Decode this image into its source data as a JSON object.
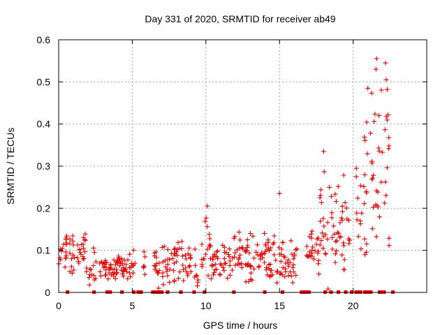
{
  "chart_data": {
    "type": "scatter",
    "title": "Day 331 of 2020, SRMTID for receiver ab49",
    "xlabel": "GPS time / hours",
    "ylabel": "SRMTID / TECUs",
    "xlim": [
      0,
      25
    ],
    "ylim": [
      0,
      0.6
    ],
    "xticks": [
      0,
      5,
      10,
      15,
      20
    ],
    "yticks": [
      0,
      0.1,
      0.2,
      0.3,
      0.4,
      0.5,
      0.6
    ],
    "xtick_labels": [
      "0",
      "5",
      "10",
      "15",
      "20"
    ],
    "ytick_labels": [
      "0",
      "0.1",
      "0.2",
      "0.3",
      "0.4",
      "0.5",
      "0.6"
    ],
    "grid": true,
    "marker": "+",
    "color": "#e00000",
    "series": [
      {
        "name": "SRMTID",
        "segments": [
          {
            "start": 0.0,
            "end": 0.6,
            "mean": 0.1,
            "spread": 0.025
          },
          {
            "start": 0.7,
            "end": 1.9,
            "mean": 0.09,
            "spread": 0.025
          },
          {
            "start": 2.0,
            "end": 4.7,
            "mean": 0.055,
            "spread": 0.018
          },
          {
            "start": 4.8,
            "end": 5.2,
            "mean": 0.065,
            "spread": 0.02
          },
          {
            "start": 5.7,
            "end": 5.9,
            "mean": 0.06,
            "spread": 0.02
          },
          {
            "start": 6.5,
            "end": 9.0,
            "mean": 0.065,
            "spread": 0.025
          },
          {
            "start": 9.2,
            "end": 9.5,
            "mean": 0.06,
            "spread": 0.02
          },
          {
            "start": 9.7,
            "end": 9.9,
            "mean": 0.085,
            "spread": 0.02
          },
          {
            "start": 9.95,
            "end": 10.3,
            "mean": 0.14,
            "spread": 0.04
          },
          {
            "start": 10.3,
            "end": 11.8,
            "mean": 0.075,
            "spread": 0.025
          },
          {
            "start": 11.8,
            "end": 15.2,
            "mean": 0.08,
            "spread": 0.03
          },
          {
            "start": 15.2,
            "end": 16.2,
            "mean": 0.07,
            "spread": 0.025
          },
          {
            "start": 16.8,
            "end": 17.7,
            "mean": 0.1,
            "spread": 0.03
          },
          {
            "start": 17.7,
            "end": 19.0,
            "mean": 0.15,
            "spread": 0.07
          },
          {
            "start": 19.0,
            "end": 19.8,
            "mean": 0.13,
            "spread": 0.05
          },
          {
            "start": 20.2,
            "end": 20.6,
            "mean": 0.2,
            "spread": 0.06
          },
          {
            "start": 20.6,
            "end": 21.8,
            "mean": 0.3,
            "spread": 0.1
          },
          {
            "start": 21.9,
            "end": 22.5,
            "mean": 0.33,
            "spread": 0.12
          }
        ],
        "highlights": [
          {
            "x": 18.0,
            "y": 0.335
          },
          {
            "x": 21.0,
            "y": 0.485
          },
          {
            "x": 21.6,
            "y": 0.555
          },
          {
            "x": 22.2,
            "y": 0.545
          },
          {
            "x": 21.55,
            "y": 0.53
          },
          {
            "x": 22.25,
            "y": 0.505
          },
          {
            "x": 15.0,
            "y": 0.235
          },
          {
            "x": 10.1,
            "y": 0.205
          }
        ]
      }
    ],
    "zero_markers": [
      0.6,
      2.4,
      3.3,
      3.5,
      4.3,
      5.1,
      5.4,
      5.6,
      6.4,
      6.6,
      6.8,
      7.0,
      7.4,
      8.3,
      9.2,
      9.9,
      11.9,
      14.0,
      15.2,
      16.5,
      16.7,
      16.8,
      17.0,
      18.1,
      18.5,
      19.0,
      19.5,
      19.9,
      20.2,
      20.3,
      20.5,
      20.8,
      21.0,
      21.2,
      21.8,
      22.0,
      22.1,
      22.7
    ]
  }
}
